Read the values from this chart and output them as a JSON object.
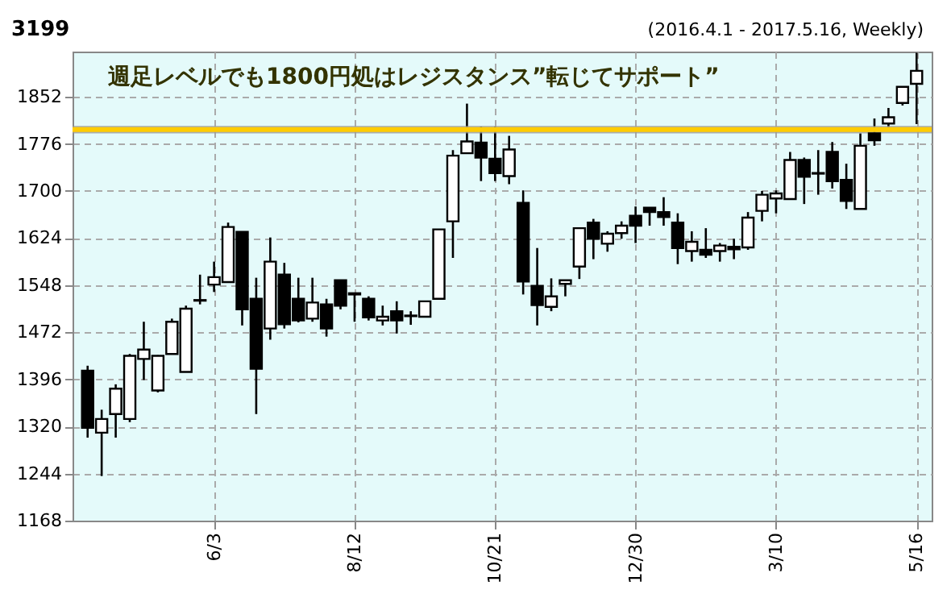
{
  "chart_data": {
    "type": "candlestick",
    "title": "3199",
    "subtitle": "(2016.4.1 - 2017.5.16, Weekly)",
    "annotations": [
      "週足レベルでも1800円処はレジスタンス”転じてサポート”"
    ],
    "categories": [
      null,
      null,
      null,
      null,
      null,
      null,
      null,
      null,
      null,
      "6/3",
      null,
      null,
      null,
      null,
      null,
      null,
      null,
      null,
      null,
      "8/12",
      null,
      null,
      null,
      null,
      null,
      null,
      null,
      null,
      null,
      "10/21",
      null,
      null,
      null,
      null,
      null,
      null,
      null,
      null,
      null,
      "12/30",
      null,
      null,
      null,
      null,
      null,
      null,
      null,
      null,
      null,
      "3/10",
      null,
      null,
      null,
      null,
      null,
      null,
      null,
      null,
      null,
      "5/16"
    ],
    "ohlc": [
      [
        1410,
        1418,
        1302,
        1318
      ],
      [
        1310,
        1347,
        1240,
        1332
      ],
      [
        1340,
        1388,
        1302,
        1381
      ],
      [
        1332,
        1437,
        1327,
        1434
      ],
      [
        1429,
        1489,
        1395,
        1444
      ],
      [
        1378,
        1435,
        1375,
        1434
      ],
      [
        1437,
        1494,
        1437,
        1489
      ],
      [
        1408,
        1515,
        1408,
        1510
      ],
      [
        1523,
        1565,
        1517,
        1524
      ],
      [
        1549,
        1586,
        1537,
        1561
      ],
      [
        1553,
        1649,
        1552,
        1642
      ],
      [
        1634,
        1634,
        1483,
        1509
      ],
      [
        1526,
        1560,
        1340,
        1413
      ],
      [
        1478,
        1625,
        1460,
        1586
      ],
      [
        1565,
        1584,
        1478,
        1485
      ],
      [
        1526,
        1560,
        1488,
        1491
      ],
      [
        1494,
        1560,
        1489,
        1520
      ],
      [
        1517,
        1526,
        1465,
        1478
      ],
      [
        1556,
        1556,
        1509,
        1515
      ],
      [
        1535,
        1535,
        1489,
        1533
      ],
      [
        1526,
        1530,
        1491,
        1496
      ],
      [
        1491,
        1515,
        1483,
        1497
      ],
      [
        1506,
        1522,
        1470,
        1491
      ],
      [
        1498,
        1506,
        1484,
        1499
      ],
      [
        1497,
        1522,
        1497,
        1522
      ],
      [
        1526,
        1638,
        1526,
        1638
      ],
      [
        1651,
        1766,
        1592,
        1757
      ],
      [
        1761,
        1841,
        1761,
        1780
      ],
      [
        1778,
        1804,
        1716,
        1754
      ],
      [
        1752,
        1804,
        1716,
        1729
      ],
      [
        1724,
        1789,
        1711,
        1767
      ],
      [
        1681,
        1701,
        1533,
        1554
      ],
      [
        1547,
        1608,
        1483,
        1516
      ],
      [
        1513,
        1559,
        1506,
        1530
      ],
      [
        1550,
        1556,
        1530,
        1556
      ],
      [
        1578,
        1640,
        1558,
        1640
      ],
      [
        1649,
        1655,
        1590,
        1623
      ],
      [
        1615,
        1635,
        1602,
        1631
      ],
      [
        1632,
        1651,
        1623,
        1644
      ],
      [
        1660,
        1675,
        1616,
        1644
      ],
      [
        1673,
        1673,
        1644,
        1666
      ],
      [
        1666,
        1690,
        1644,
        1658
      ],
      [
        1649,
        1664,
        1582,
        1608
      ],
      [
        1603,
        1635,
        1586,
        1618
      ],
      [
        1605,
        1640,
        1592,
        1597
      ],
      [
        1603,
        1616,
        1586,
        1612
      ],
      [
        1610,
        1623,
        1590,
        1606
      ],
      [
        1609,
        1666,
        1605,
        1657
      ],
      [
        1668,
        1700,
        1651,
        1694
      ],
      [
        1688,
        1701,
        1664,
        1696
      ],
      [
        1687,
        1763,
        1687,
        1750
      ],
      [
        1750,
        1754,
        1679,
        1723
      ],
      [
        1729,
        1766,
        1694,
        1728
      ],
      [
        1763,
        1779,
        1704,
        1716
      ],
      [
        1718,
        1744,
        1671,
        1684
      ],
      [
        1671,
        1793,
        1671,
        1773
      ],
      [
        1793,
        1817,
        1773,
        1782
      ],
      [
        1809,
        1834,
        1798,
        1819
      ],
      [
        1842,
        1868,
        1838,
        1868
      ],
      [
        1873,
        1923,
        1808,
        1894
      ]
    ],
    "ylim": [
      1168,
      1925
    ],
    "yticks": [
      1168,
      1244,
      1320,
      1396,
      1472,
      1548,
      1624,
      1700,
      1776,
      1852
    ],
    "bands": [
      {
        "axis": "y",
        "from": 1793,
        "to": 1805,
        "color": "#9a9a9a"
      }
    ],
    "ref_lines": [
      {
        "axis": "y",
        "value": 1799,
        "color": "#ffcc00"
      }
    ],
    "grid": true
  }
}
